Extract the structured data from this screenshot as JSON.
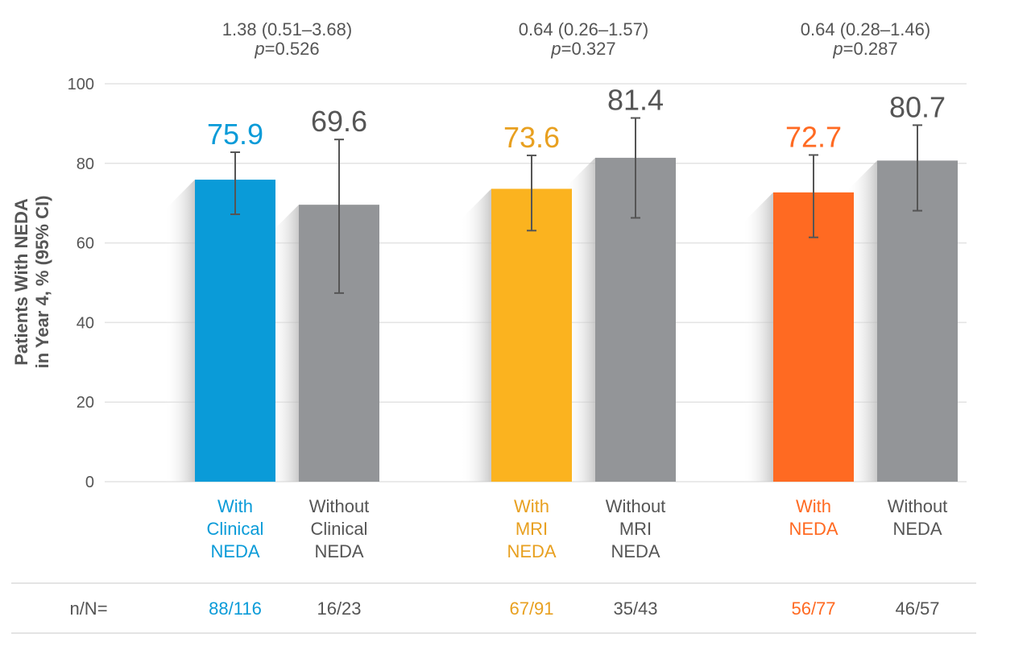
{
  "chart_data": {
    "type": "bar",
    "ylabel": "Patients With NEDA in Year 4, % (95% CI)",
    "ylabel_lines": [
      "Patients With NEDA",
      "in Year 4, % (95% CI)"
    ],
    "ylim": [
      0,
      100
    ],
    "yticks": [
      "0",
      "20",
      "40",
      "60",
      "80",
      "100"
    ],
    "grid": true,
    "counts_label": "n/N=",
    "groups": [
      {
        "stat_line1": "1.38 (0.51–3.68)",
        "stat_p_italic": "p",
        "stat_p_value": "=0.526",
        "bars": [
          {
            "label_lines": [
              "With",
              "Clinical",
              "NEDA"
            ],
            "value": 75.9,
            "value_label": "75.9",
            "ci": [
              67.2,
              82.8
            ],
            "color": "#0a9bd8",
            "count": "88/116"
          },
          {
            "label_lines": [
              "Without",
              "Clinical",
              "NEDA"
            ],
            "value": 69.6,
            "value_label": "69.6",
            "ci": [
              47.4,
              86.0
            ],
            "color": "#939598",
            "count": "16/23"
          }
        ]
      },
      {
        "stat_line1": "0.64 (0.26–1.57)",
        "stat_p_italic": "p",
        "stat_p_value": "=0.327",
        "bars": [
          {
            "label_lines": [
              "With",
              "MRI",
              "NEDA"
            ],
            "value": 73.6,
            "value_label": "73.6",
            "ci": [
              63.1,
              82.0
            ],
            "color": "#fbb31f",
            "count": "67/91"
          },
          {
            "label_lines": [
              "Without",
              "MRI",
              "NEDA"
            ],
            "value": 81.4,
            "value_label": "81.4",
            "ci": [
              66.3,
              91.4
            ],
            "color": "#939598",
            "count": "35/43"
          }
        ]
      },
      {
        "stat_line1": "0.64 (0.28–1.46)",
        "stat_p_italic": "p",
        "stat_p_value": "=0.287",
        "bars": [
          {
            "label_lines": [
              "With",
              "NEDA"
            ],
            "value": 72.7,
            "value_label": "72.7",
            "ci": [
              61.4,
              82.1
            ],
            "color": "#ff6a22",
            "count": "56/77"
          },
          {
            "label_lines": [
              "Without",
              "NEDA"
            ],
            "value": 80.7,
            "value_label": "80.7",
            "ci": [
              68.1,
              89.6
            ],
            "color": "#939598",
            "count": "46/57"
          }
        ]
      }
    ],
    "text_colors": {
      "with_clinical": "#0a9bd8",
      "with_mri": "#e8a020",
      "with_neda": "#ff6a22",
      "without": "#555555"
    }
  }
}
